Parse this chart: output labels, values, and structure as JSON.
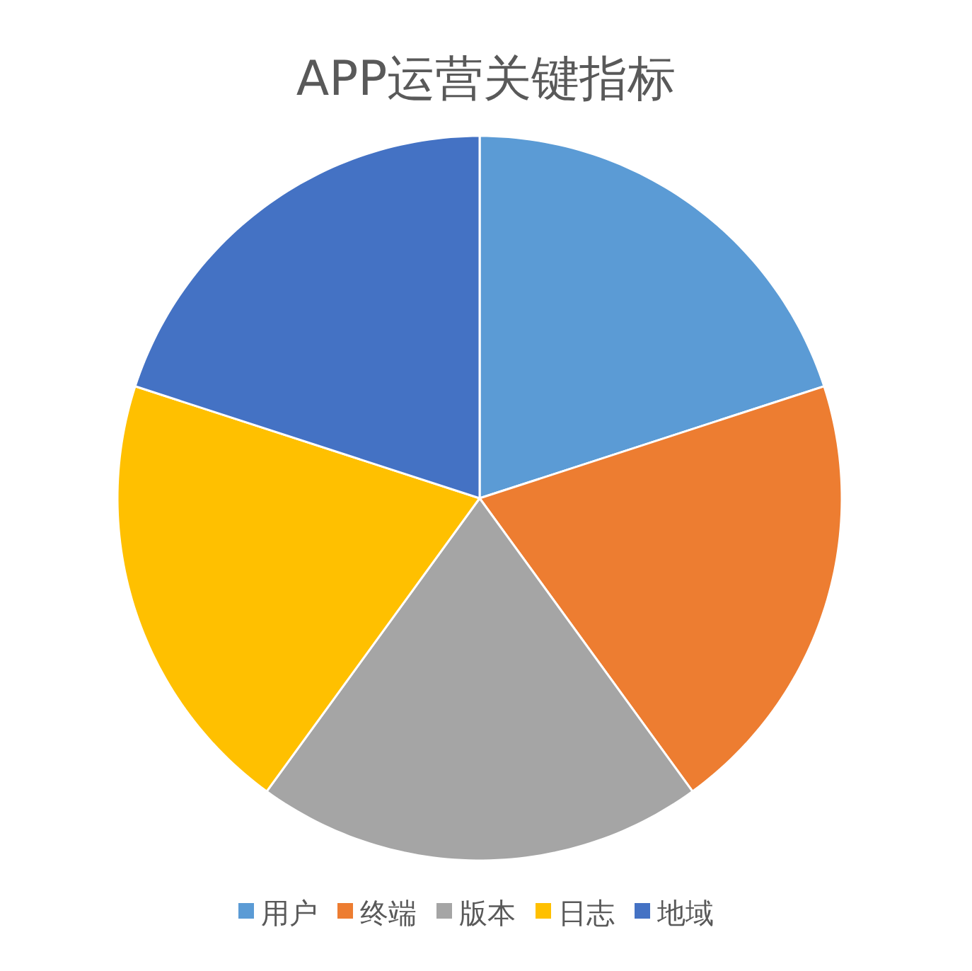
{
  "chart_data": {
    "type": "pie",
    "title": "APP运营关键指标",
    "categories": [
      "用户",
      "终端",
      "版本",
      "日志",
      "地域"
    ],
    "values": [
      20,
      20,
      20,
      20,
      20
    ],
    "colors": [
      "#5b9bd5",
      "#ed7d31",
      "#a5a5a5",
      "#ffc000",
      "#4472c4"
    ],
    "legend": "bottom"
  }
}
